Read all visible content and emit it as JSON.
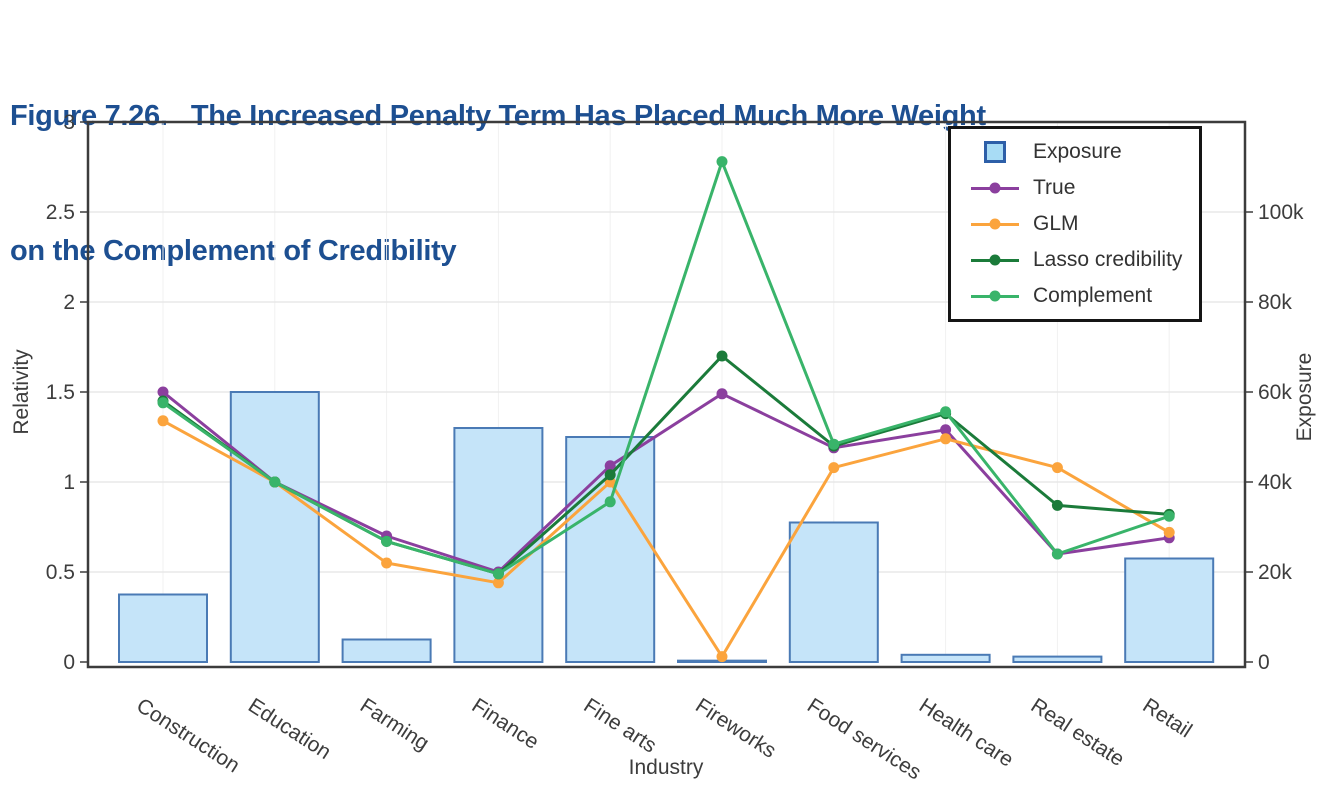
{
  "title": {
    "line1": "Figure 7.26.   The Increased Penalty Term Has Placed Much More Weight",
    "line2": "on the Complement of Credibility",
    "color": "#1d4f91"
  },
  "legend": {
    "items": [
      {
        "label": "Exposure",
        "type": "bar",
        "fill": "#a8dcf5",
        "stroke": "#2d5fa8"
      },
      {
        "label": "True",
        "type": "line",
        "color": "#8b3f9e"
      },
      {
        "label": "GLM",
        "type": "line",
        "color": "#fba43d"
      },
      {
        "label": "Lasso credibility",
        "type": "line",
        "color": "#1b7b3a"
      },
      {
        "label": "Complement",
        "type": "line",
        "color": "#39b46a"
      }
    ]
  },
  "chart_data": {
    "type": "bar+line",
    "categories": [
      "Construction",
      "Education",
      "Farming",
      "Finance",
      "Fine arts",
      "Fireworks",
      "Food services",
      "Health care",
      "Real estate",
      "Retail"
    ],
    "x_axis": {
      "title": "Industry"
    },
    "left_axis": {
      "title": "Relativity",
      "range": [
        0,
        3
      ],
      "tick_values": [
        0,
        0.5,
        1,
        1.5,
        2,
        2.5,
        3
      ],
      "tick_labels": [
        "0",
        "0.5",
        "1",
        "1.5",
        "2",
        "2.5",
        "3"
      ]
    },
    "right_axis": {
      "title": "Exposure",
      "range": [
        0,
        120000
      ],
      "tick_values": [
        0,
        20000,
        40000,
        60000,
        80000,
        100000
      ],
      "tick_labels": [
        "0",
        "20k",
        "40k",
        "60k",
        "80k",
        "100k"
      ]
    },
    "bar_series": {
      "name": "Exposure",
      "axis": "right",
      "fill": "#c5e4f9",
      "stroke": "#4a7ab5",
      "values": [
        15000,
        60000,
        5000,
        52000,
        50000,
        300,
        31000,
        1600,
        1200,
        23000
      ]
    },
    "line_series": [
      {
        "name": "True",
        "axis": "left",
        "color": "#8b3f9e",
        "values": [
          1.5,
          1.0,
          0.7,
          0.5,
          1.09,
          1.49,
          1.19,
          1.29,
          0.6,
          0.69
        ]
      },
      {
        "name": "GLM",
        "axis": "left",
        "color": "#fba43d",
        "values": [
          1.34,
          1.0,
          0.55,
          0.44,
          1.0,
          0.03,
          1.08,
          1.24,
          1.08,
          0.72
        ]
      },
      {
        "name": "Lasso credibility",
        "axis": "left",
        "color": "#1b7b3a",
        "values": [
          1.45,
          1.0,
          0.67,
          0.49,
          1.04,
          1.7,
          1.2,
          1.38,
          0.87,
          0.82
        ]
      },
      {
        "name": "Complement",
        "axis": "left",
        "color": "#39b46a",
        "values": [
          1.44,
          1.0,
          0.67,
          0.49,
          0.89,
          2.78,
          1.21,
          1.39,
          0.6,
          0.81
        ]
      }
    ],
    "grid": {
      "horizontal": true,
      "vertical": true
    },
    "legend_position": "top-right"
  }
}
